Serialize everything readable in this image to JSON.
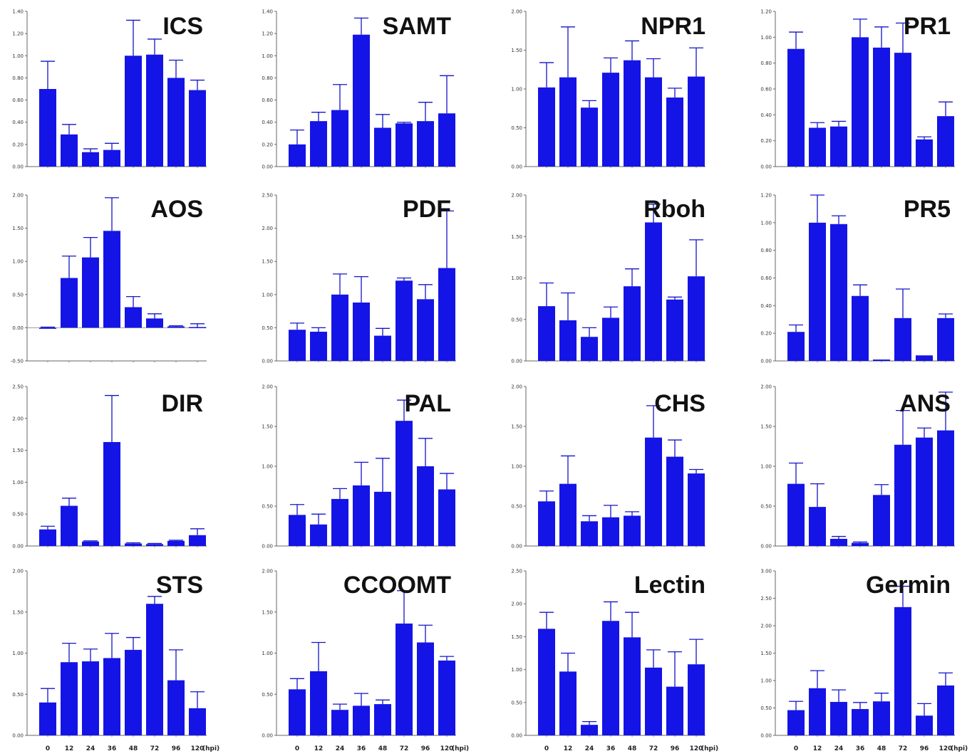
{
  "colors": {
    "bar": "#1414e6",
    "error_bar": "#1414c8",
    "axis": "#666666"
  },
  "x_axis": {
    "categories": [
      "0",
      "12",
      "24",
      "36",
      "48",
      "72",
      "96",
      "120"
    ],
    "unit_label": "(hpi)"
  },
  "chart_data": [
    {
      "type": "bar",
      "title": "ICS",
      "categories": [
        "0",
        "12",
        "24",
        "36",
        "48",
        "72",
        "96",
        "120"
      ],
      "values": [
        0.7,
        0.29,
        0.13,
        0.15,
        1.0,
        1.01,
        0.8,
        0.69
      ],
      "errors": [
        0.25,
        0.09,
        0.03,
        0.06,
        0.32,
        0.14,
        0.16,
        0.09
      ],
      "ylim": [
        0,
        1.4
      ],
      "yticks": [
        "0.00",
        "0.20",
        "0.40",
        "0.60",
        "0.80",
        "1.00",
        "1.20",
        "1.40"
      ],
      "show_xticks": false
    },
    {
      "type": "bar",
      "title": "SAMT",
      "categories": [
        "0",
        "12",
        "24",
        "36",
        "48",
        "72",
        "96",
        "120"
      ],
      "values": [
        0.2,
        0.41,
        0.51,
        1.19,
        0.35,
        0.39,
        0.41,
        0.48
      ],
      "errors": [
        0.13,
        0.08,
        0.23,
        0.15,
        0.12,
        0.01,
        0.17,
        0.34
      ],
      "ylim": [
        0,
        1.4
      ],
      "yticks": [
        "0.00",
        "0.20",
        "0.40",
        "0.60",
        "0.80",
        "1.00",
        "1.20",
        "1.40"
      ],
      "show_xticks": false
    },
    {
      "type": "bar",
      "title": "NPR1",
      "categories": [
        "0",
        "12",
        "24",
        "36",
        "48",
        "72",
        "96",
        "120"
      ],
      "values": [
        1.02,
        1.15,
        0.76,
        1.21,
        1.37,
        1.15,
        0.89,
        1.16
      ],
      "errors": [
        0.32,
        0.65,
        0.09,
        0.19,
        0.25,
        0.24,
        0.12,
        0.37
      ],
      "ylim": [
        0,
        2.0
      ],
      "yticks": [
        "0.00",
        "0.50",
        "1.00",
        "1.50",
        "2.00"
      ],
      "show_xticks": false
    },
    {
      "type": "bar",
      "title": "PR1",
      "categories": [
        "0",
        "12",
        "24",
        "36",
        "48",
        "72",
        "96",
        "120"
      ],
      "values": [
        0.91,
        0.3,
        0.31,
        1.0,
        0.92,
        0.88,
        0.21,
        0.39
      ],
      "errors": [
        0.13,
        0.04,
        0.04,
        0.14,
        0.16,
        0.23,
        0.02,
        0.11
      ],
      "ylim": [
        0,
        1.2
      ],
      "yticks": [
        "0.00",
        "0.20",
        "0.40",
        "0.60",
        "0.80",
        "1.00",
        "1.20"
      ],
      "show_xticks": false
    },
    {
      "type": "bar",
      "title": "AOS",
      "categories": [
        "0",
        "12",
        "24",
        "36",
        "48",
        "72",
        "96",
        "120"
      ],
      "values": [
        0.0,
        0.75,
        1.06,
        1.46,
        0.31,
        0.14,
        0.02,
        0.01
      ],
      "errors": [
        0.01,
        0.33,
        0.3,
        0.5,
        0.16,
        0.07,
        0.01,
        0.05
      ],
      "ylim": [
        -0.5,
        2.0
      ],
      "yticks": [
        "-0.50",
        "0.00",
        "0.50",
        "1.00",
        "1.50",
        "2.00"
      ],
      "show_xticks": false
    },
    {
      "type": "bar",
      "title": "PDF",
      "categories": [
        "0",
        "12",
        "24",
        "36",
        "48",
        "72",
        "96",
        "120"
      ],
      "values": [
        0.47,
        0.44,
        1.0,
        0.88,
        0.38,
        1.21,
        0.93,
        1.4
      ],
      "errors": [
        0.1,
        0.06,
        0.31,
        0.39,
        0.11,
        0.04,
        0.22,
        0.86
      ],
      "ylim": [
        0,
        2.5
      ],
      "yticks": [
        "0.00",
        "0.50",
        "1.00",
        "1.50",
        "2.00",
        "2.50"
      ],
      "show_xticks": false
    },
    {
      "type": "bar",
      "title": "Rboh",
      "categories": [
        "0",
        "12",
        "24",
        "36",
        "48",
        "72",
        "96",
        "120"
      ],
      "values": [
        0.66,
        0.49,
        0.29,
        0.52,
        0.9,
        1.67,
        0.74,
        1.02
      ],
      "errors": [
        0.28,
        0.33,
        0.11,
        0.13,
        0.21,
        0.22,
        0.03,
        0.44
      ],
      "ylim": [
        0,
        2.0
      ],
      "yticks": [
        "0.00",
        "0.50",
        "1.00",
        "1.50",
        "2.00"
      ],
      "show_xticks": false
    },
    {
      "type": "bar",
      "title": "PR5",
      "categories": [
        "0",
        "12",
        "24",
        "36",
        "48",
        "72",
        "96",
        "120"
      ],
      "values": [
        0.21,
        1.0,
        0.99,
        0.47,
        0.01,
        0.31,
        0.04,
        0.31
      ],
      "errors": [
        0.05,
        0.2,
        0.06,
        0.08,
        0.0,
        0.21,
        0.0,
        0.03
      ],
      "ylim": [
        0,
        1.2
      ],
      "yticks": [
        "0.00",
        "0.20",
        "0.40",
        "0.60",
        "0.80",
        "1.00",
        "1.20"
      ],
      "show_xticks": false
    },
    {
      "type": "bar",
      "title": "DIR",
      "categories": [
        "0",
        "12",
        "24",
        "36",
        "48",
        "72",
        "96",
        "120"
      ],
      "values": [
        0.26,
        0.63,
        0.07,
        1.63,
        0.04,
        0.03,
        0.08,
        0.17
      ],
      "errors": [
        0.05,
        0.12,
        0.01,
        0.73,
        0.01,
        0.01,
        0.01,
        0.1
      ],
      "ylim": [
        0,
        2.5
      ],
      "yticks": [
        "0.00",
        "0.50",
        "1.00",
        "1.50",
        "2.00",
        "2.50"
      ],
      "show_xticks": false
    },
    {
      "type": "bar",
      "title": "PAL",
      "categories": [
        "0",
        "12",
        "24",
        "36",
        "48",
        "72",
        "96",
        "120"
      ],
      "values": [
        0.39,
        0.27,
        0.59,
        0.76,
        0.68,
        1.57,
        1.0,
        0.71
      ],
      "errors": [
        0.13,
        0.13,
        0.13,
        0.29,
        0.42,
        0.26,
        0.35,
        0.2
      ],
      "ylim": [
        0,
        2.0
      ],
      "yticks": [
        "0.00",
        "0.50",
        "1.00",
        "1.50",
        "2.00"
      ],
      "show_xticks": false
    },
    {
      "type": "bar",
      "title": "CHS",
      "categories": [
        "0",
        "12",
        "24",
        "36",
        "48",
        "72",
        "96",
        "120"
      ],
      "values": [
        0.56,
        0.78,
        0.31,
        0.36,
        0.38,
        1.36,
        1.12,
        0.91
      ],
      "errors": [
        0.13,
        0.35,
        0.07,
        0.15,
        0.05,
        0.4,
        0.21,
        0.05
      ],
      "ylim": [
        0,
        2.0
      ],
      "yticks": [
        "0.00",
        "0.50",
        "1.00",
        "1.50",
        "2.00"
      ],
      "show_xticks": false
    },
    {
      "type": "bar",
      "title": "ANS",
      "categories": [
        "0",
        "12",
        "24",
        "36",
        "48",
        "72",
        "96",
        "120"
      ],
      "values": [
        0.78,
        0.49,
        0.09,
        0.04,
        0.64,
        1.27,
        1.36,
        1.45
      ],
      "errors": [
        0.26,
        0.29,
        0.03,
        0.01,
        0.13,
        0.43,
        0.12,
        0.48
      ],
      "ylim": [
        0,
        2.0
      ],
      "yticks": [
        "0.00",
        "0.50",
        "1.00",
        "1.50",
        "2.00"
      ],
      "show_xticks": false
    },
    {
      "type": "bar",
      "title": "STS",
      "categories": [
        "0",
        "12",
        "24",
        "36",
        "48",
        "72",
        "96",
        "120"
      ],
      "values": [
        0.4,
        0.89,
        0.9,
        0.94,
        1.04,
        1.6,
        0.67,
        0.33
      ],
      "errors": [
        0.17,
        0.23,
        0.15,
        0.3,
        0.15,
        0.09,
        0.37,
        0.2
      ],
      "ylim": [
        0,
        2.0
      ],
      "yticks": [
        "0.00",
        "0.50",
        "1.00",
        "1.50",
        "2.00"
      ],
      "show_xticks": true
    },
    {
      "type": "bar",
      "title": "CCOOMT",
      "categories": [
        "0",
        "12",
        "24",
        "36",
        "48",
        "72",
        "96",
        "120"
      ],
      "values": [
        0.56,
        0.78,
        0.31,
        0.36,
        0.38,
        1.36,
        1.13,
        0.91
      ],
      "errors": [
        0.13,
        0.35,
        0.07,
        0.15,
        0.05,
        0.4,
        0.21,
        0.05
      ],
      "ylim": [
        0,
        2.0
      ],
      "yticks": [
        "0.00",
        "0.50",
        "1.00",
        "1.50",
        "2.00"
      ],
      "show_xticks": true
    },
    {
      "type": "bar",
      "title": "Lectin",
      "categories": [
        "0",
        "12",
        "24",
        "36",
        "48",
        "72",
        "96",
        "120"
      ],
      "values": [
        1.62,
        0.97,
        0.16,
        1.74,
        1.49,
        1.03,
        0.74,
        1.08
      ],
      "errors": [
        0.25,
        0.28,
        0.05,
        0.29,
        0.38,
        0.27,
        0.53,
        0.38
      ],
      "ylim": [
        0,
        2.5
      ],
      "yticks": [
        "0.00",
        "0.50",
        "1.00",
        "1.50",
        "2.00",
        "2.50"
      ],
      "show_xticks": true
    },
    {
      "type": "bar",
      "title": "Germin",
      "categories": [
        "0",
        "12",
        "24",
        "36",
        "48",
        "72",
        "96",
        "120"
      ],
      "values": [
        0.46,
        0.86,
        0.61,
        0.48,
        0.62,
        2.34,
        0.36,
        0.91
      ],
      "errors": [
        0.16,
        0.32,
        0.22,
        0.12,
        0.15,
        0.38,
        0.22,
        0.23
      ],
      "ylim": [
        0,
        3.0
      ],
      "yticks": [
        "0.00",
        "0.50",
        "1.00",
        "1.50",
        "2.00",
        "2.50",
        "3.00"
      ],
      "show_xticks": true
    }
  ]
}
